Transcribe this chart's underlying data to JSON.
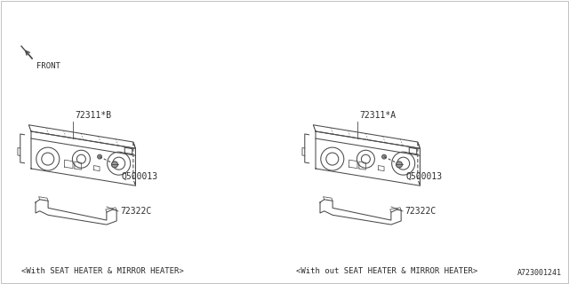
{
  "bg_color": "#ffffff",
  "line_color": "#4a4a4a",
  "text_color": "#2a2a2a",
  "diagram_id": "A723001241",
  "left_caption": "<With SEAT HEATER & MIRROR HEATER>",
  "right_caption": "<With out SEAT HEATER & MIRROR HEATER>",
  "left_part1_label": "72311*B",
  "right_part1_label": "72311*A",
  "shared_label1": "Q500013",
  "shared_label2": "72322C",
  "front_label": "FRONT"
}
